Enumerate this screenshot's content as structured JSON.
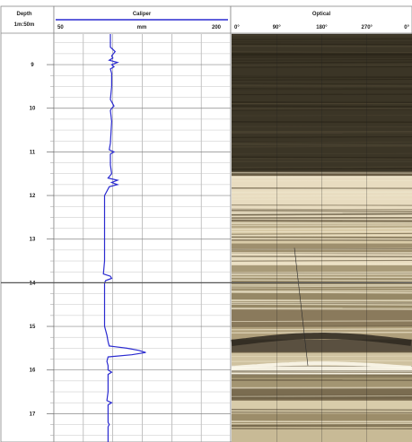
{
  "header": {
    "depth_title": "Depth",
    "depth_unit": "1m:50m",
    "caliper_title": "Caliper",
    "caliper_unit": "mm",
    "optical_title": "Optical"
  },
  "chart_data": {
    "type": "line",
    "title": "",
    "depth_axis": {
      "labels": [
        "9",
        "10",
        "11",
        "12",
        "13",
        "14",
        "15",
        "16",
        "17"
      ],
      "range": [
        8.3,
        17.65
      ],
      "grid": true
    },
    "caliper": {
      "xlabel": "mm",
      "xlim": [
        50,
        200
      ],
      "tick_labels": [
        "50",
        "mm",
        "200"
      ],
      "grid": true,
      "color": "#2a2ad0",
      "series": {
        "depth": [
          8.3,
          8.6,
          8.7,
          8.8,
          8.85,
          8.9,
          8.95,
          9.0,
          9.05,
          9.1,
          9.2,
          9.5,
          9.8,
          9.95,
          10.0,
          10.05,
          10.3,
          10.8,
          10.95,
          11.0,
          11.05,
          11.3,
          11.5,
          11.6,
          11.65,
          11.7,
          11.75,
          11.8,
          12.0,
          12.5,
          13.0,
          13.5,
          13.8,
          13.85,
          13.9,
          13.95,
          14.0,
          14.5,
          15.0,
          15.1,
          15.2,
          15.35,
          15.45,
          15.5,
          15.55,
          15.6,
          15.65,
          15.7,
          15.8,
          15.9,
          16.0,
          16.05,
          16.1,
          16.2,
          16.5,
          16.7,
          16.75,
          16.8,
          17.0,
          17.2,
          17.25,
          17.3,
          17.65
        ],
        "caliper_mm": [
          98,
          98,
          102,
          99,
          100,
          97,
          104,
          99,
          101,
          98,
          99,
          99,
          98,
          101,
          99,
          98,
          99,
          98,
          97,
          101,
          98,
          98,
          99,
          96,
          104,
          99,
          104,
          97,
          93,
          93,
          93,
          93,
          92,
          98,
          99,
          94,
          93,
          93,
          93,
          94,
          95,
          96,
          97,
          112,
          122,
          128,
          116,
          96,
          95,
          96,
          96,
          99,
          96,
          96,
          96,
          95,
          99,
          96,
          96,
          96,
          97,
          96,
          96
        ]
      }
    },
    "optical": {
      "tick_labels": [
        "0°",
        "90°",
        "180°",
        "270°",
        "0°"
      ],
      "colors": {
        "dark": "#3b3526",
        "medium": "#8a7a5c",
        "light": "#e8dcc0",
        "white": "#f4efe0"
      }
    }
  }
}
